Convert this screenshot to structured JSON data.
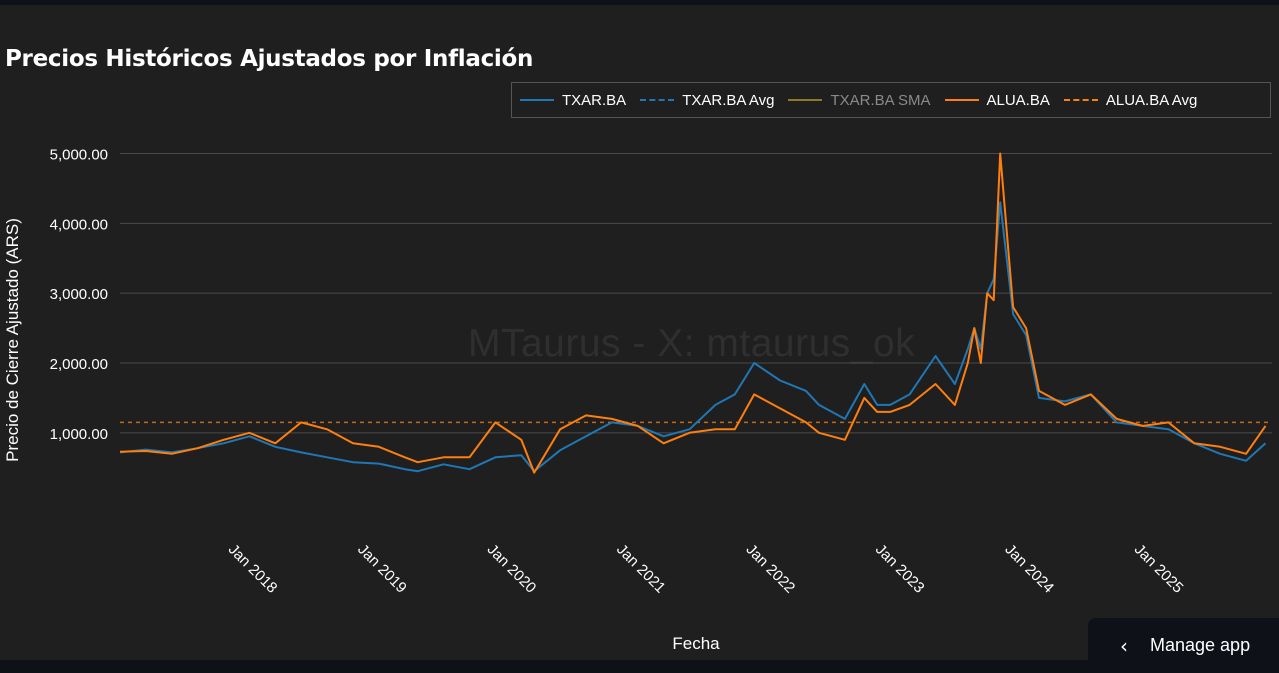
{
  "title": "Precios Históricos Ajustados por Inflación",
  "watermark": "MTaurus - X: mtaurus_ok",
  "manage_app": {
    "label": "Manage app",
    "icon": "chevron-left-icon"
  },
  "chart_data": {
    "type": "line",
    "title": "Precios Históricos Ajustados por Inflación",
    "xlabel": "Fecha",
    "ylabel": "Precio de Cierre Ajustado (ARS)",
    "xlim": [
      2017.0,
      2025.9
    ],
    "ylim": [
      -420,
      5480
    ],
    "yticks": [
      1000,
      2000,
      3000,
      4000,
      5000
    ],
    "ytick_labels": [
      "1,000.00",
      "2,000.00",
      "3,000.00",
      "4,000.00",
      "5,000.00"
    ],
    "xticks": [
      2018,
      2019,
      2020,
      2021,
      2022,
      2023,
      2024,
      2025
    ],
    "xtick_labels": [
      "Jan 2018",
      "Jan 2019",
      "Jan 2020",
      "Jan 2021",
      "Jan 2022",
      "Jan 2023",
      "Jan 2024",
      "Jan 2025"
    ],
    "grid": true,
    "legend_position": "top-right",
    "colors": {
      "txar": "#1f77b4",
      "alua": "#ff7f0e",
      "sma": "#8c7a2a"
    },
    "legend": [
      {
        "label": "TXAR.BA",
        "style": "solid",
        "color": "#1f77b4",
        "muted": false
      },
      {
        "label": "TXAR.BA Avg",
        "style": "dashed",
        "color": "#1f77b4",
        "muted": false
      },
      {
        "label": "TXAR.BA SMA",
        "style": "solid",
        "color": "#8c7a2a",
        "muted": true
      },
      {
        "label": "ALUA.BA",
        "style": "solid",
        "color": "#ff7f0e",
        "muted": false
      },
      {
        "label": "ALUA.BA Avg",
        "style": "dashed",
        "color": "#ff7f0e",
        "muted": false
      }
    ],
    "series": [
      {
        "name": "TXAR.BA",
        "x": [
          2017.0,
          2017.2,
          2017.4,
          2017.6,
          2017.8,
          2018.0,
          2018.2,
          2018.4,
          2018.6,
          2018.8,
          2019.0,
          2019.2,
          2019.3,
          2019.5,
          2019.7,
          2019.9,
          2020.1,
          2020.2,
          2020.4,
          2020.6,
          2020.8,
          2021.0,
          2021.2,
          2021.4,
          2021.6,
          2021.75,
          2021.9,
          2022.1,
          2022.3,
          2022.4,
          2022.6,
          2022.75,
          2022.85,
          2022.95,
          2023.1,
          2023.3,
          2023.45,
          2023.55,
          2023.6,
          2023.65,
          2023.7,
          2023.75,
          2023.8,
          2023.9,
          2024.0,
          2024.1,
          2024.3,
          2024.5,
          2024.7,
          2024.9,
          2025.1,
          2025.3,
          2025.5,
          2025.7,
          2025.85
        ],
        "y": [
          720,
          760,
          720,
          780,
          850,
          950,
          800,
          720,
          650,
          580,
          560,
          480,
          450,
          550,
          480,
          650,
          680,
          450,
          750,
          950,
          1150,
          1100,
          950,
          1050,
          1400,
          1550,
          2000,
          1750,
          1600,
          1400,
          1200,
          1700,
          1400,
          1400,
          1550,
          2100,
          1700,
          2200,
          2500,
          2200,
          3000,
          3200,
          4300,
          2700,
          2400,
          1500,
          1450,
          1550,
          1150,
          1100,
          1050,
          850,
          700,
          600,
          850
        ]
      },
      {
        "name": "ALUA.BA",
        "x": [
          2017.0,
          2017.2,
          2017.4,
          2017.6,
          2017.8,
          2018.0,
          2018.2,
          2018.4,
          2018.6,
          2018.8,
          2019.0,
          2019.2,
          2019.3,
          2019.5,
          2019.7,
          2019.9,
          2020.1,
          2020.2,
          2020.4,
          2020.6,
          2020.8,
          2021.0,
          2021.2,
          2021.4,
          2021.6,
          2021.75,
          2021.9,
          2022.1,
          2022.3,
          2022.4,
          2022.6,
          2022.75,
          2022.85,
          2022.95,
          2023.1,
          2023.3,
          2023.45,
          2023.55,
          2023.6,
          2023.65,
          2023.7,
          2023.75,
          2023.8,
          2023.9,
          2024.0,
          2024.1,
          2024.3,
          2024.5,
          2024.7,
          2024.9,
          2025.1,
          2025.3,
          2025.5,
          2025.7,
          2025.85
        ],
        "y": [
          730,
          740,
          700,
          780,
          900,
          1000,
          850,
          1150,
          1050,
          850,
          800,
          650,
          580,
          650,
          650,
          1150,
          900,
          430,
          1050,
          1250,
          1200,
          1100,
          850,
          1000,
          1050,
          1050,
          1550,
          1350,
          1150,
          1000,
          900,
          1500,
          1300,
          1300,
          1400,
          1700,
          1400,
          2000,
          2500,
          2000,
          3000,
          2900,
          5000,
          2800,
          2500,
          1600,
          1400,
          1550,
          1200,
          1100,
          1150,
          850,
          800,
          700,
          1100
        ]
      },
      {
        "name": "ALUA.BA Avg",
        "constant": 1150
      }
    ]
  }
}
